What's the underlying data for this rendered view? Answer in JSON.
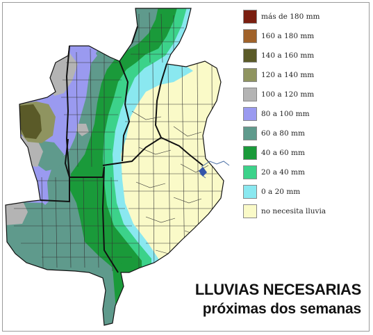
{
  "legend": {
    "items": [
      {
        "label": "más de 180 mm",
        "color": "#7a1e10"
      },
      {
        "label": "160 a 180 mm",
        "color": "#a0622a"
      },
      {
        "label": "140 a 160 mm",
        "color": "#5a5a28"
      },
      {
        "label": "120 a 140 mm",
        "color": "#8f9460"
      },
      {
        "label": "100 a 120 mm",
        "color": "#b4b4b4"
      },
      {
        "label": "80 a 100 mm",
        "color": "#9a9af0"
      },
      {
        "label": "60 a 80 mm",
        "color": "#5f9a8c"
      },
      {
        "label": "40 a 60 mm",
        "color": "#1a9a3a"
      },
      {
        "label": "20 a 40 mm",
        "color": "#3cd28a"
      },
      {
        "label": "0 a 20 mm",
        "color": "#8ae8f0"
      },
      {
        "label": "no necesita lluvia",
        "color": "#fafac8"
      }
    ]
  },
  "title": {
    "line1": "LLUVIAS NECESARIAS",
    "line2": "próximas dos semanas"
  }
}
